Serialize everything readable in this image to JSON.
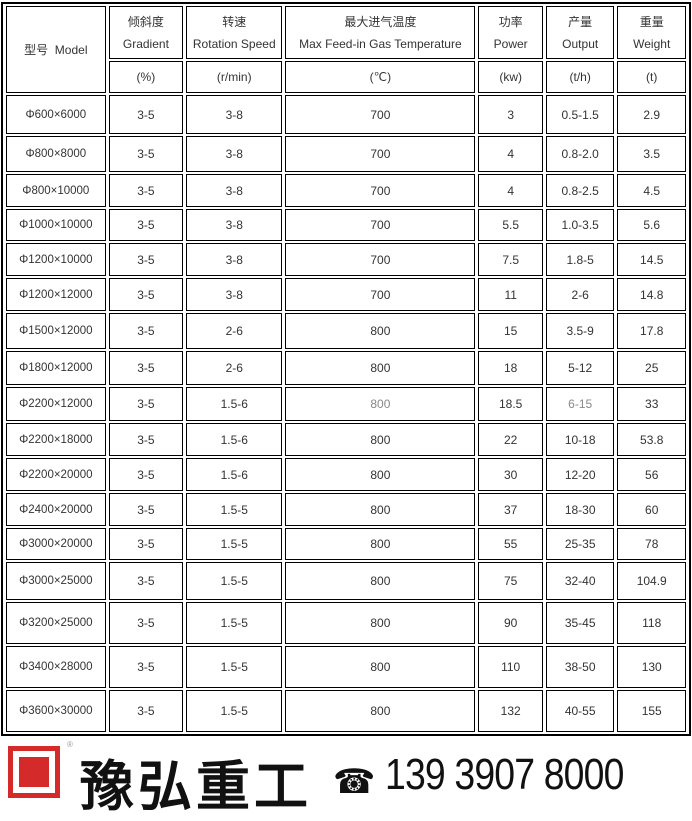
{
  "headers": [
    {
      "cn": "型号",
      "en": "Model",
      "unit": ""
    },
    {
      "cn": "倾斜度",
      "en": "Gradient",
      "unit": "(%)"
    },
    {
      "cn": "转速",
      "en": "Rotation Speed",
      "unit": "(r/min)"
    },
    {
      "cn": "最大进气温度",
      "en": "Max Feed-in Gas Temperature",
      "unit": "(℃)"
    },
    {
      "cn": "功率",
      "en": "Power",
      "unit": "(kw)"
    },
    {
      "cn": "产量",
      "en": "Output",
      "unit": "(t/h)"
    },
    {
      "cn": "重量",
      "en": "Weight",
      "unit": "(t)"
    }
  ],
  "rows": [
    [
      "Φ600×6000",
      "3-5",
      "3-8",
      "700",
      "3",
      "0.5-1.5",
      "2.9"
    ],
    [
      "Φ800×8000",
      "3-5",
      "3-8",
      "700",
      "4",
      "0.8-2.0",
      "3.5"
    ],
    [
      "Φ800×10000",
      "3-5",
      "3-8",
      "700",
      "4",
      "0.8-2.5",
      "4.5"
    ],
    [
      "Φ1000×10000",
      "3-5",
      "3-8",
      "700",
      "5.5",
      "1.0-3.5",
      "5.6"
    ],
    [
      "Φ1200×10000",
      "3-5",
      "3-8",
      "700",
      "7.5",
      "1.8-5",
      "14.5"
    ],
    [
      "Φ1200×12000",
      "3-5",
      "3-8",
      "700",
      "11",
      "2-6",
      "14.8"
    ],
    [
      "Φ1500×12000",
      "3-5",
      "2-6",
      "800",
      "15",
      "3.5-9",
      "17.8"
    ],
    [
      "Φ1800×12000",
      "3-5",
      "2-6",
      "800",
      "18",
      "5-12",
      "25"
    ],
    [
      "Φ2200×12000",
      "3-5",
      "1.5-6",
      "800",
      "18.5",
      "6-15",
      "33"
    ],
    [
      "Φ2200×18000",
      "3-5",
      "1.5-6",
      "800",
      "22",
      "10-18",
      "53.8"
    ],
    [
      "Φ2200×20000",
      "3-5",
      "1.5-6",
      "800",
      "30",
      "12-20",
      "56"
    ],
    [
      "Φ2400×20000",
      "3-5",
      "1.5-5",
      "800",
      "37",
      "18-30",
      "60"
    ],
    [
      "Φ3000×20000",
      "3-5",
      "1.5-5",
      "800",
      "55",
      "25-35",
      "78"
    ],
    [
      "Φ3000×25000",
      "3-5",
      "1.5-5",
      "800",
      "75",
      "32-40",
      "104.9"
    ],
    [
      "Φ3200×25000",
      "3-5",
      "1.5-5",
      "800",
      "90",
      "35-45",
      "118"
    ],
    [
      "Φ3400×28000",
      "3-5",
      "1.5-5",
      "800",
      "110",
      "38-50",
      "130"
    ],
    [
      "Φ3600×30000",
      "3-5",
      "1.5-5",
      "800",
      "132",
      "40-55",
      "155"
    ]
  ],
  "footer": {
    "brand": "豫弘重工",
    "phone": "139 3907 8000",
    "reg_mark": "®",
    "phone_icon": "telephone-icon",
    "accent": "#d42a2a"
  }
}
